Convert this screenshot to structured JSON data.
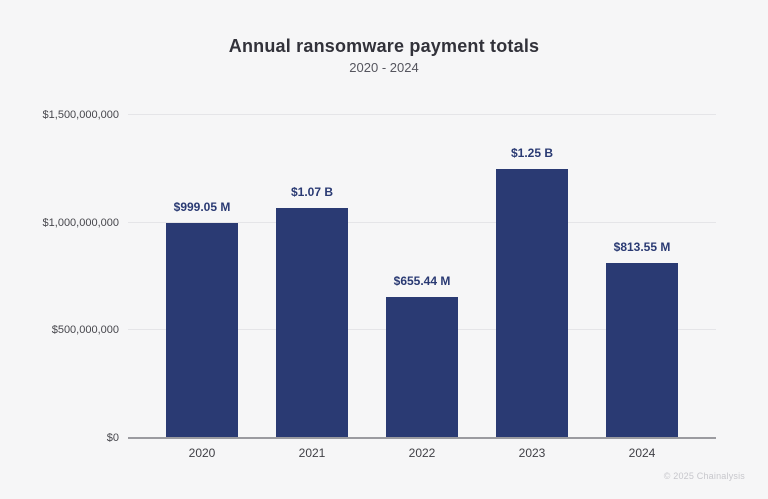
{
  "watermark": "© 2025 Chainalysis",
  "colors": {
    "background": "#f6f6f7",
    "bar": "#2a3a73",
    "title": "#32323a",
    "subtitle": "#55555e",
    "axis_tick_label": "#47474d",
    "gridline": "#e5e5e8",
    "axis_line": "#9b9ba0",
    "data_label": "#2a3a73",
    "watermark": "#c7c7cc"
  },
  "chart_data": {
    "type": "bar",
    "title": "Annual ransomware payment totals",
    "subtitle": "2020 - 2024",
    "categories": [
      "2020",
      "2021",
      "2022",
      "2023",
      "2024"
    ],
    "values": [
      999050000,
      1070000000,
      655440000,
      1250000000,
      813550000
    ],
    "bar_labels": [
      "$999.05 M",
      "$1.07 B",
      "$655.44 M",
      "$1.25 B",
      "$813.55 M"
    ],
    "y_ticks": [
      {
        "value": 0,
        "label": "$0"
      },
      {
        "value": 500000000,
        "label": "$500,000,000"
      },
      {
        "value": 1000000000,
        "label": "$1,000,000,000"
      },
      {
        "value": 1500000000,
        "label": "$1,500,000,000"
      }
    ],
    "ylim": [
      0,
      1500000000
    ],
    "xlabel": "",
    "ylabel": "",
    "grid": true,
    "legend": false,
    "bar_color": "#2a3a73"
  }
}
